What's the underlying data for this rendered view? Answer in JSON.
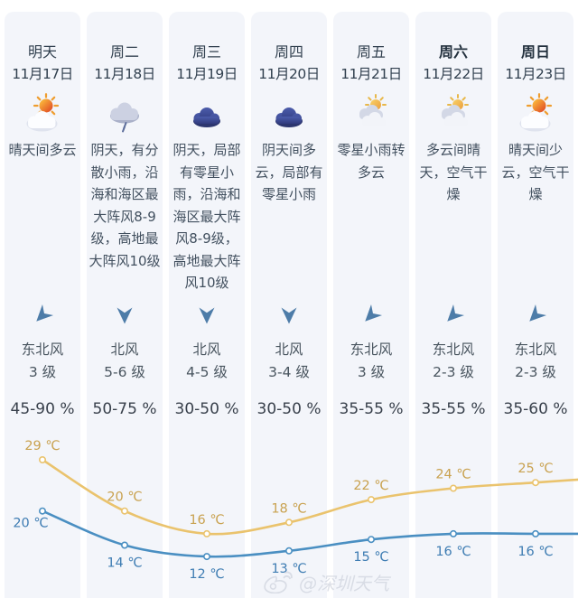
{
  "watermark": {
    "label": "@深圳天气",
    "icon": "weibo-icon"
  },
  "days": [
    {
      "name": "明天",
      "date": "11月17日",
      "icon": "sun-cloud",
      "desc": "晴天间多云",
      "wind_direction": "东北风",
      "wind_scale": "3 级",
      "humidity": "45-90 %",
      "arrow_points": "southwest",
      "emphasis": false
    },
    {
      "name": "周二",
      "date": "11月18日",
      "icon": "rain-cloud",
      "desc": "阴天，有分散小雨，沿海和海区最大阵风8-9级，高地最大阵风10级",
      "wind_direction": "北风",
      "wind_scale": "5-6 级",
      "humidity": "50-75 %",
      "arrow_points": "south",
      "emphasis": false
    },
    {
      "name": "周三",
      "date": "11月19日",
      "icon": "dark-cloud",
      "desc": "阴天，局部有零星小雨，沿海和海区最大阵风8-9级，高地最大阵风10级",
      "wind_direction": "北风",
      "wind_scale": "4-5 级",
      "humidity": "30-50 %",
      "arrow_points": "south",
      "emphasis": false
    },
    {
      "name": "周四",
      "date": "11月20日",
      "icon": "dark-cloud",
      "desc": "阴天间多云，局部有零星小雨",
      "wind_direction": "北风",
      "wind_scale": "3-4 级",
      "humidity": "30-50 %",
      "arrow_points": "south",
      "emphasis": false
    },
    {
      "name": "周五",
      "date": "11月21日",
      "icon": "sun-clouds",
      "desc": "零星小雨转多云",
      "wind_direction": "东北风",
      "wind_scale": "3 级",
      "humidity": "35-55 %",
      "arrow_points": "southwest",
      "emphasis": false
    },
    {
      "name": "周六",
      "date": "11月22日",
      "icon": "sun-clouds",
      "desc": "多云间晴天，空气干燥",
      "wind_direction": "东北风",
      "wind_scale": "2-3 级",
      "humidity": "35-55 %",
      "arrow_points": "southwest",
      "emphasis": true
    },
    {
      "name": "周日",
      "date": "11月23日",
      "icon": "sun-cloud",
      "desc": "晴天间少云，空气干燥",
      "wind_direction": "东北风",
      "wind_scale": "2-3 级",
      "humidity": "35-60 %",
      "arrow_points": "southwest",
      "emphasis": true
    }
  ],
  "chart_data": {
    "type": "line",
    "categories": [
      "明天 11月17日",
      "周二 11月18日",
      "周三 11月19日",
      "周四 11月20日",
      "周五 11月21日",
      "周六 11月22日",
      "周日 11月23日"
    ],
    "unit": "℃",
    "series": [
      {
        "name": "最高气温",
        "values": [
          29,
          20,
          16,
          18,
          22,
          24,
          25
        ],
        "line_color": "#eac36d",
        "label_color": "#c9a250"
      },
      {
        "name": "最低气温",
        "values": [
          20,
          14,
          12,
          13,
          15,
          16,
          16
        ],
        "line_color": "#4a8fc2",
        "label_color": "#3f7db3"
      }
    ],
    "ylim": [
      10,
      31
    ],
    "grid": false,
    "legend_position": "none",
    "label_position": {
      "最高气温": "above points",
      "最低气温": "below points"
    }
  },
  "colors": {
    "card_bg": "#f3f5fa",
    "text_primary": "#31404f",
    "wind_arrow": "#4d7ca8"
  }
}
